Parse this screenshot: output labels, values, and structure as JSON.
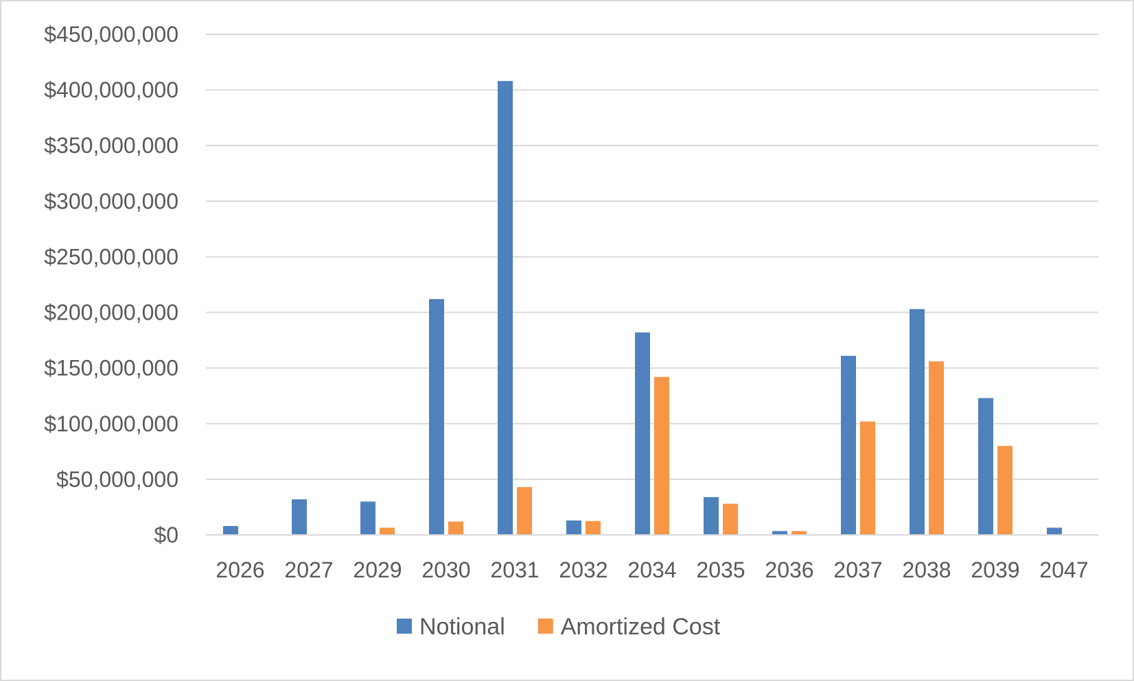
{
  "chart_data": {
    "type": "bar",
    "categories": [
      "2026",
      "2027",
      "2029",
      "2030",
      "2031",
      "2032",
      "2034",
      "2035",
      "2036",
      "2037",
      "2038",
      "2039",
      "2047"
    ],
    "series": [
      {
        "name": "Notional",
        "color": "#4f81bd",
        "values": [
          8000000,
          32000000,
          30000000,
          212000000,
          408000000,
          13000000,
          182000000,
          34000000,
          3500000,
          161000000,
          203000000,
          123000000,
          6500000
        ]
      },
      {
        "name": "Amortized Cost",
        "color": "#f79646",
        "values": [
          0,
          0,
          6500000,
          12000000,
          43000000,
          12500000,
          142000000,
          28000000,
          3500000,
          102000000,
          156000000,
          80000000,
          0
        ]
      }
    ],
    "y_ticks": [
      "$0",
      "$50,000,000",
      "$100,000,000",
      "$150,000,000",
      "$200,000,000",
      "$250,000,000",
      "$300,000,000",
      "$350,000,000",
      "$400,000,000",
      "$450,000,000"
    ],
    "ylim": [
      0,
      450000000
    ],
    "grid": true,
    "legend_position": "bottom"
  }
}
